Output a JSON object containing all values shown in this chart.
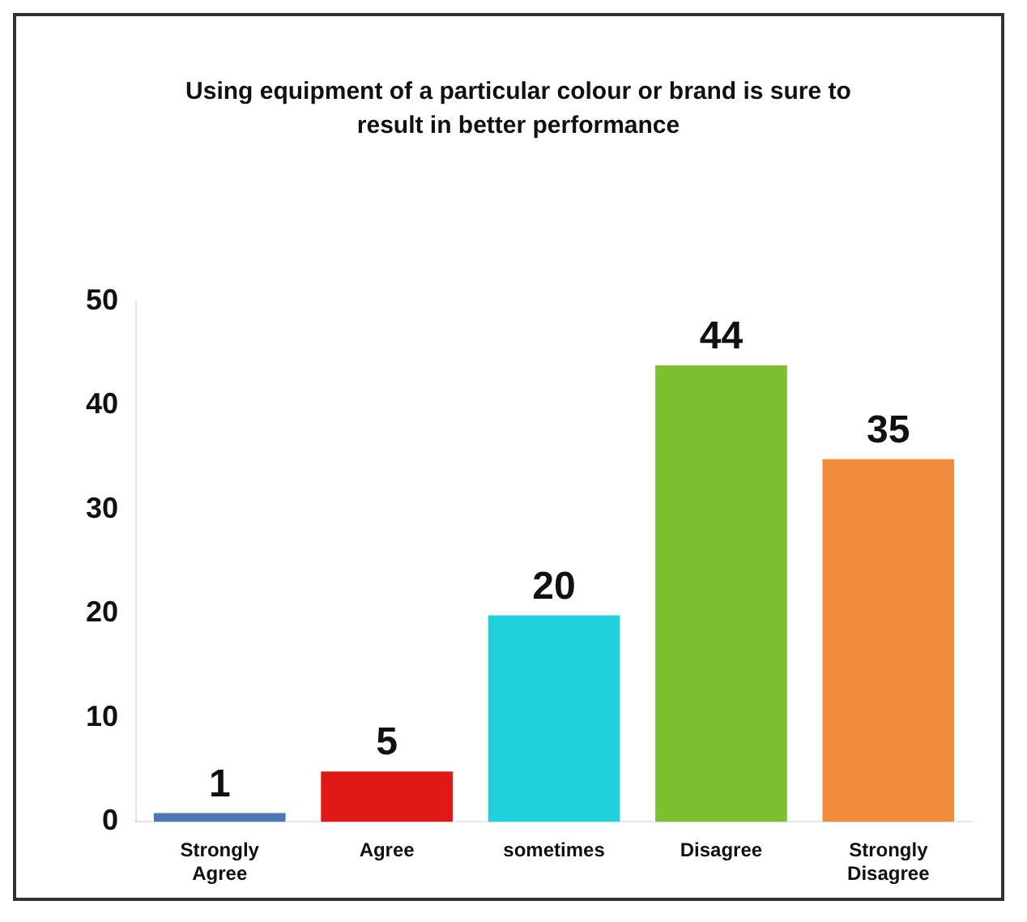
{
  "chart_data": {
    "type": "bar",
    "title": "Using equipment of a particular colour or brand is sure to result in better performance",
    "categories": [
      "Strongly Agree",
      "Agree",
      "sometimes",
      "Disagree",
      "Strongly Disagree"
    ],
    "values": [
      1,
      5,
      20,
      44,
      35
    ],
    "colors": [
      "#4a78b4",
      "#e01818",
      "#20d0dc",
      "#7cc030",
      "#f08c3c"
    ],
    "ylim": [
      0,
      50
    ],
    "yticks": [
      0,
      10,
      20,
      30,
      40,
      50
    ],
    "grid": false,
    "legend": false,
    "data_labels": true
  }
}
